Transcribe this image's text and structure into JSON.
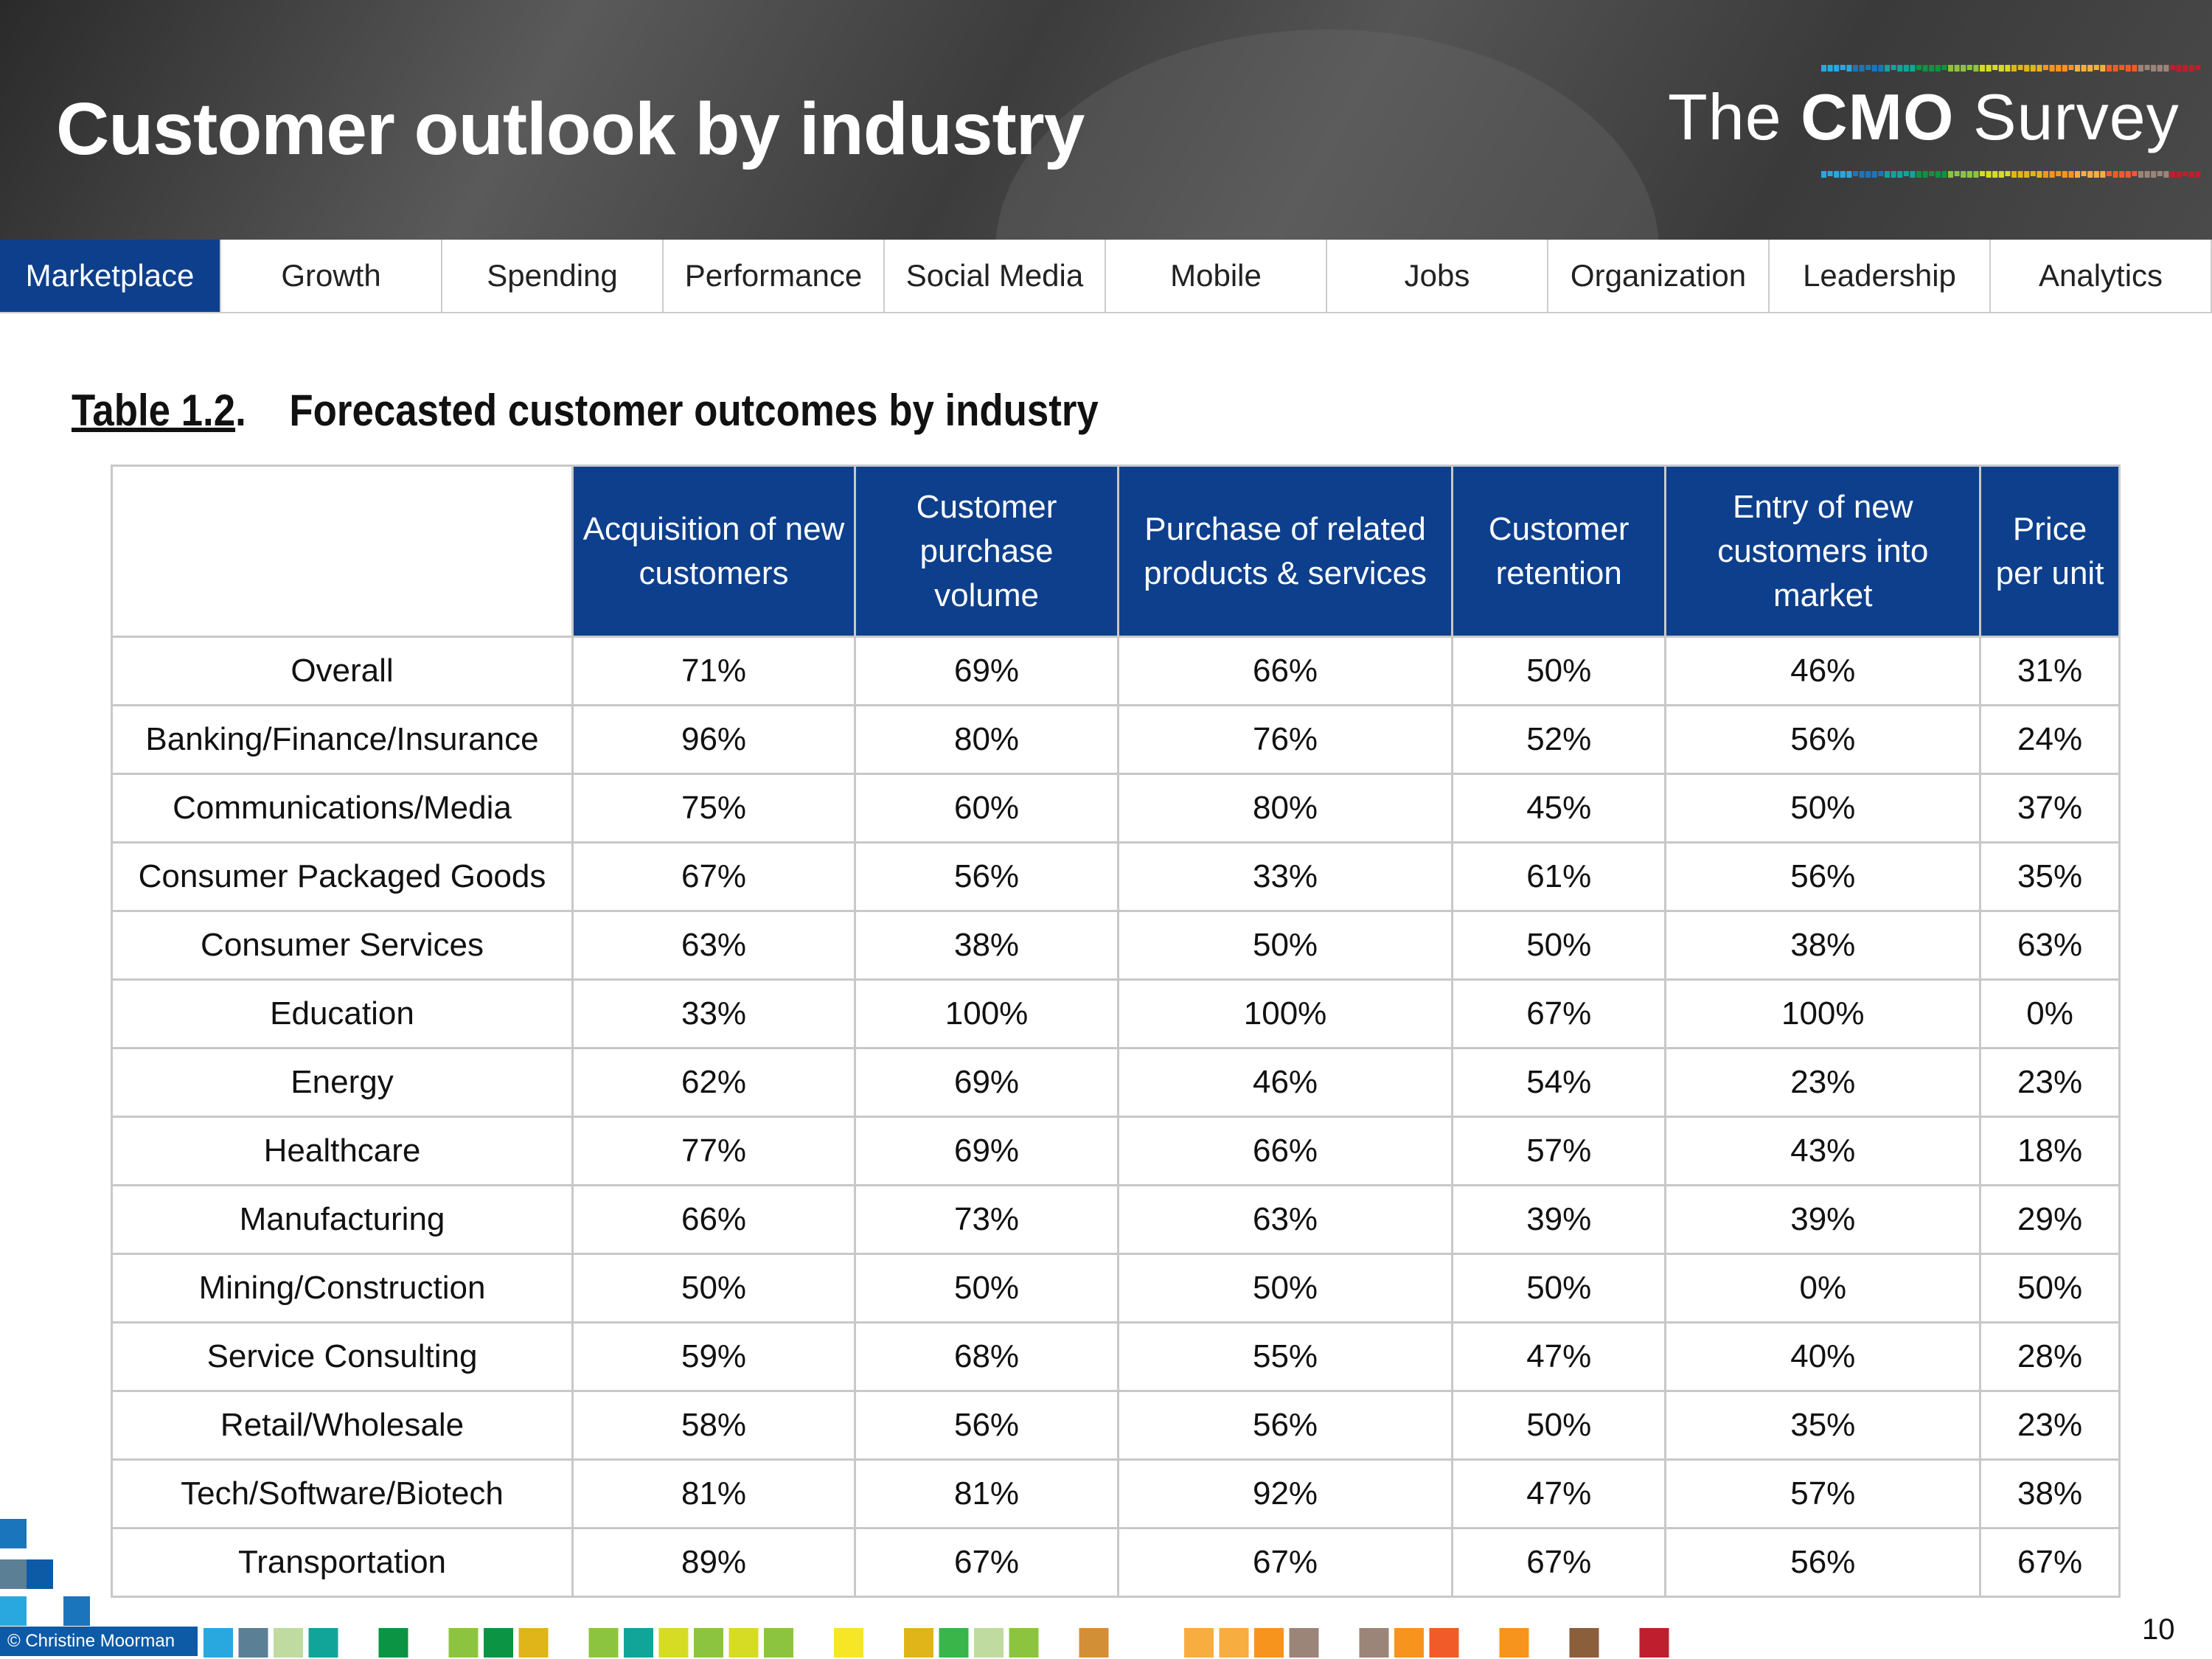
{
  "header": {
    "title": "Customer outlook by industry",
    "logo": {
      "pre": "The ",
      "bold": "CMO",
      "post": " Survey"
    }
  },
  "nav": {
    "tabs": [
      {
        "label": "Marketplace",
        "active": true
      },
      {
        "label": "Growth"
      },
      {
        "label": "Spending"
      },
      {
        "label": "Performance"
      },
      {
        "label": "Social Media"
      },
      {
        "label": "Mobile"
      },
      {
        "label": "Jobs"
      },
      {
        "label": "Organization"
      },
      {
        "label": "Leadership"
      },
      {
        "label": "Analytics"
      }
    ]
  },
  "table": {
    "label": "Table 1.2",
    "title": "Forecasted customer outcomes by industry",
    "columns": [
      "Acquisition of new customers",
      "Customer purchase volume",
      "Purchase of related products & services",
      "Customer retention",
      "Entry of new customers into market",
      "Price per unit"
    ],
    "rows": [
      {
        "industry": "Overall",
        "values": [
          "71%",
          "69%",
          "66%",
          "50%",
          "46%",
          "31%"
        ]
      },
      {
        "industry": "Banking/Finance/Insurance",
        "values": [
          "96%",
          "80%",
          "76%",
          "52%",
          "56%",
          "24%"
        ]
      },
      {
        "industry": "Communications/Media",
        "values": [
          "75%",
          "60%",
          "80%",
          "45%",
          "50%",
          "37%"
        ]
      },
      {
        "industry": "Consumer Packaged Goods",
        "values": [
          "67%",
          "56%",
          "33%",
          "61%",
          "56%",
          "35%"
        ]
      },
      {
        "industry": "Consumer Services",
        "values": [
          "63%",
          "38%",
          "50%",
          "50%",
          "38%",
          "63%"
        ]
      },
      {
        "industry": "Education",
        "values": [
          "33%",
          "100%",
          "100%",
          "67%",
          "100%",
          "0%"
        ]
      },
      {
        "industry": "Energy",
        "values": [
          "62%",
          "69%",
          "46%",
          "54%",
          "23%",
          "23%"
        ]
      },
      {
        "industry": "Healthcare",
        "values": [
          "77%",
          "69%",
          "66%",
          "57%",
          "43%",
          "18%"
        ]
      },
      {
        "industry": "Manufacturing",
        "values": [
          "66%",
          "73%",
          "63%",
          "39%",
          "39%",
          "29%"
        ]
      },
      {
        "industry": "Mining/Construction",
        "values": [
          "50%",
          "50%",
          "50%",
          "50%",
          "0%",
          "50%"
        ]
      },
      {
        "industry": "Service Consulting",
        "values": [
          "59%",
          "68%",
          "55%",
          "47%",
          "40%",
          "28%"
        ]
      },
      {
        "industry": "Retail/Wholesale",
        "values": [
          "58%",
          "56%",
          "56%",
          "50%",
          "35%",
          "23%"
        ]
      },
      {
        "industry": "Tech/Software/Biotech",
        "values": [
          "81%",
          "81%",
          "92%",
          "47%",
          "57%",
          "38%"
        ]
      },
      {
        "industry": "Transportation",
        "values": [
          "89%",
          "67%",
          "67%",
          "67%",
          "56%",
          "67%"
        ]
      }
    ]
  },
  "footer": {
    "copyright": "© Christine Moorman",
    "page_number": "10",
    "squares": [
      "#29a8e0",
      "#5b7f95",
      "#bfdba0",
      "#11a59a",
      null,
      "#0b9444",
      null,
      "#8dc43f",
      "#0b9444",
      "#e0b519",
      null,
      "#8dc43f",
      "#11a59a",
      "#d6dc24",
      "#8dc43f",
      "#d6dc24",
      "#8dc43f",
      null,
      "#f6e626",
      null,
      "#e0b519",
      "#39b54a",
      "#bfdba0",
      "#8dc43f",
      null,
      "#d38f35",
      null,
      null,
      "#f8ad40",
      "#f8ad40",
      "#f7941d",
      "#9a8578",
      null,
      "#9a8578",
      "#f7941d",
      "#f15a29",
      null,
      "#f7941d",
      null,
      "#8b5e3c",
      null,
      "#be1e2d"
    ]
  },
  "colors": {
    "accent": "#0d3f8c",
    "grid": "#c8c8c8"
  }
}
